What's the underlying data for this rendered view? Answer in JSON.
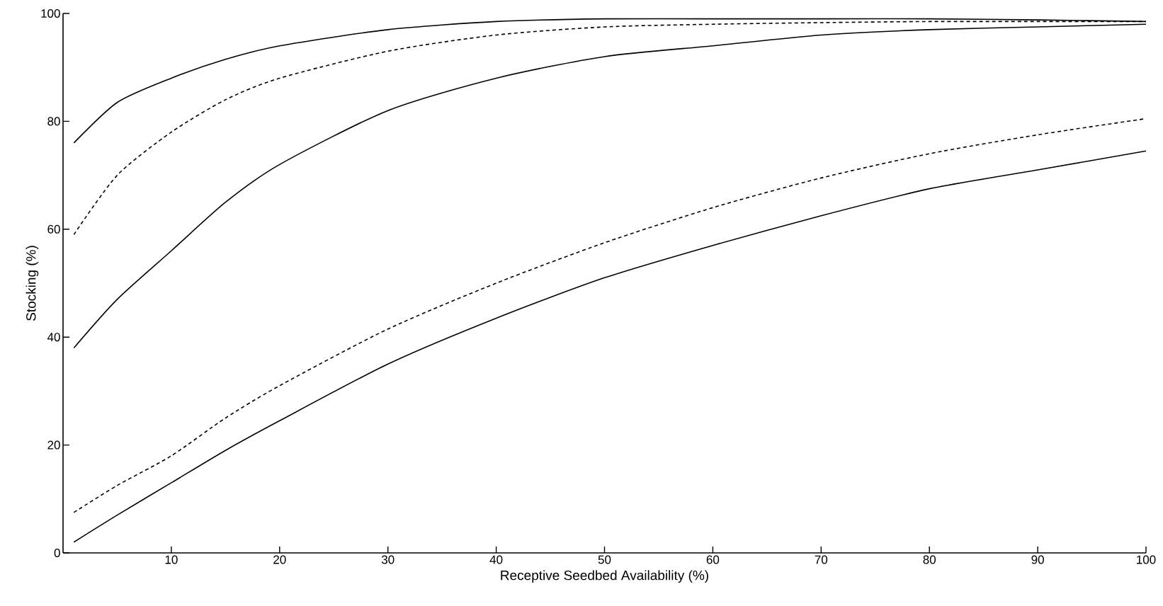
{
  "chart_data": {
    "type": "line",
    "xlabel": "Receptive Seedbed Availability (%)",
    "ylabel": "Stocking (%)",
    "x": [
      1,
      5,
      10,
      15,
      20,
      30,
      40,
      50,
      60,
      70,
      80,
      90,
      100
    ],
    "series": [
      {
        "color": "#000000",
        "line_style": "solid",
        "values": [
          76,
          83.5,
          88,
          91.5,
          94,
          97,
          98.5,
          99,
          99,
          99,
          99,
          98.8,
          98.5
        ]
      },
      {
        "color": "#000000",
        "line_style": "dashed",
        "values": [
          59,
          70,
          78,
          84,
          88,
          93,
          96,
          97.5,
          98,
          98.3,
          98.5,
          98.5,
          98.5
        ]
      },
      {
        "color": "#000000",
        "line_style": "solid",
        "values": [
          38,
          47,
          56,
          65,
          72,
          82,
          88,
          92,
          94,
          96,
          97,
          97.5,
          98
        ]
      },
      {
        "color": "#000000",
        "line_style": "dashed",
        "values": [
          7.5,
          12.5,
          18,
          25,
          31,
          41.5,
          50,
          57.5,
          64,
          69.5,
          74,
          77.5,
          80.5
        ]
      },
      {
        "color": "#000000",
        "line_style": "solid",
        "values": [
          2,
          7,
          13,
          19,
          24.5,
          35,
          43.5,
          51,
          57,
          62.5,
          67.5,
          71,
          74.5
        ]
      }
    ],
    "xlim": [
      0,
      100
    ],
    "ylim": [
      0,
      100
    ],
    "xticks": [
      10,
      20,
      30,
      40,
      50,
      60,
      70,
      80,
      90,
      100
    ],
    "yticks": [
      0,
      20,
      40,
      60,
      80,
      100
    ],
    "grid": false,
    "marker": "none"
  }
}
